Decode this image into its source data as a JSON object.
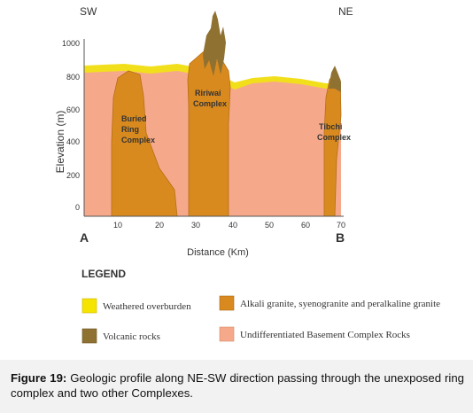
{
  "direction": {
    "left": "SW",
    "right": "NE"
  },
  "profile_ends": {
    "start": "A",
    "end": "B"
  },
  "axes": {
    "ylabel": "Elevation (m)",
    "xlabel": "Distance (Km)",
    "yticks": [
      "0",
      "200",
      "400",
      "600",
      "800",
      "1000"
    ],
    "xticks": [
      "10",
      "20",
      "30",
      "40",
      "50",
      "60",
      "70"
    ]
  },
  "labels": {
    "buried": [
      "Buried",
      "Ring",
      "Complex"
    ],
    "ririwai": [
      "Ririwai",
      "Complex"
    ],
    "tibchi": [
      "Tibchi",
      "Complex"
    ]
  },
  "legend": {
    "title": "LEGEND",
    "items": [
      {
        "label": "Weathered overburden",
        "color": "#f5e400"
      },
      {
        "label": "Alkali granite, syenogranite and peralkaline granite",
        "color": "#d98a1f"
      },
      {
        "label": "Volcanic rocks",
        "color": "#8f7132"
      },
      {
        "label": "Undifferentiated Basement Complex Rocks",
        "color": "#f6a98a"
      }
    ]
  },
  "caption": {
    "label": "Figure 19:",
    "text": " Geologic profile along NE-SW direction passing through the unexposed ring complex and two other Complexes."
  }
}
